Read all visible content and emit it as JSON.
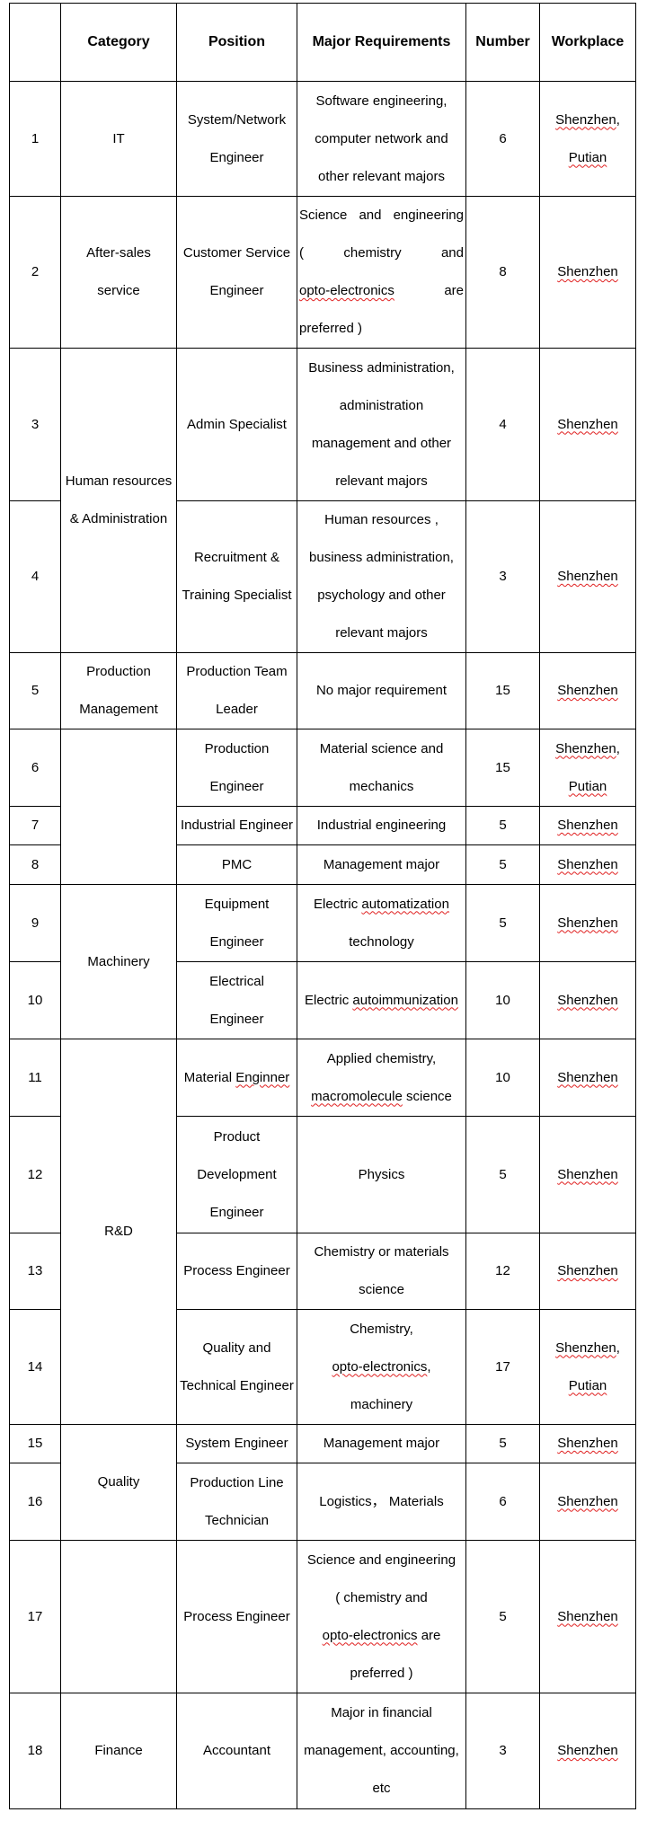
{
  "header": {
    "no": "",
    "category": "Category",
    "position": "Position",
    "requirements": "Major Requirements",
    "number": "Number",
    "workplace": "Workplace"
  },
  "spellcheck_flagged": [
    "Shenzhen",
    "Putian",
    "opto-electronics",
    "automatization",
    "autoimmunization",
    "Enginner",
    "macromolecule"
  ],
  "rows": [
    {
      "no": "1",
      "category": [
        "IT"
      ],
      "position": [
        "System/Network",
        "Engineer"
      ],
      "requirements": [
        "Software engineering,",
        "computer network and",
        "other relevant majors"
      ],
      "number": "6",
      "workplace": [
        "Shenzhen,",
        "Putian"
      ]
    },
    {
      "no": "2",
      "category": [
        "After-sales",
        "service"
      ],
      "position": [
        "Customer Service",
        "Engineer"
      ],
      "requirements": [
        "Science and engineering",
        "( chemistry and",
        "opto-electronics are",
        "preferred )"
      ],
      "number": "8",
      "workplace": [
        "Shenzhen"
      ]
    },
    {
      "no": "3",
      "category": [
        "Human resources",
        "& Administration"
      ],
      "position": [
        "Admin Specialist"
      ],
      "requirements": [
        "Business administration,",
        "administration",
        "management and other",
        "relevant majors"
      ],
      "number": "4",
      "workplace": [
        "Shenzhen"
      ]
    },
    {
      "no": "4",
      "category": [],
      "position": [
        "Recruitment &",
        "Training Specialist"
      ],
      "requirements": [
        "Human resources ,",
        "business administration,",
        "psychology and other",
        "relevant majors"
      ],
      "number": "3",
      "workplace": [
        "Shenzhen"
      ]
    },
    {
      "no": "5",
      "category": [
        "Production",
        "Management"
      ],
      "position": [
        "Production Team",
        "Leader"
      ],
      "requirements": [
        "No major requirement"
      ],
      "number": "15",
      "workplace": [
        "Shenzhen"
      ]
    },
    {
      "no": "6",
      "category": [],
      "position": [
        "Production",
        "Engineer"
      ],
      "requirements": [
        "Material science and",
        "mechanics"
      ],
      "number": "15",
      "workplace": [
        "Shenzhen,",
        "Putian"
      ]
    },
    {
      "no": "7",
      "category": [],
      "position": [
        "Industrial Engineer"
      ],
      "requirements": [
        "Industrial engineering"
      ],
      "number": "5",
      "workplace": [
        "Shenzhen"
      ]
    },
    {
      "no": "8",
      "category": [],
      "position": [
        "PMC"
      ],
      "requirements": [
        "Management major"
      ],
      "number": "5",
      "workplace": [
        "Shenzhen"
      ]
    },
    {
      "no": "9",
      "category": [
        "Machinery"
      ],
      "position": [
        "Equipment",
        "Engineer"
      ],
      "requirements": [
        "Electric automatization",
        "technology"
      ],
      "number": "5",
      "workplace": [
        "Shenzhen"
      ]
    },
    {
      "no": "10",
      "category": [],
      "position": [
        "Electrical",
        "Engineer"
      ],
      "requirements": [
        "Electric autoimmunization"
      ],
      "number": "10",
      "workplace": [
        "Shenzhen"
      ]
    },
    {
      "no": "11",
      "category": [
        "R&D"
      ],
      "position": [
        "Material Enginner"
      ],
      "requirements": [
        "Applied chemistry,",
        "macromolecule science"
      ],
      "number": "10",
      "workplace": [
        "Shenzhen"
      ]
    },
    {
      "no": "12",
      "category": [],
      "position": [
        "Product",
        "Development",
        "Engineer"
      ],
      "requirements": [
        "Physics"
      ],
      "number": "5",
      "workplace": [
        "Shenzhen"
      ]
    },
    {
      "no": "13",
      "category": [],
      "position": [
        "Process Engineer"
      ],
      "requirements": [
        "Chemistry or materials",
        "science"
      ],
      "number": "12",
      "workplace": [
        "Shenzhen"
      ]
    },
    {
      "no": "14",
      "category": [],
      "position": [
        "Quality and",
        "Technical Engineer"
      ],
      "requirements": [
        "Chemistry,",
        "opto-electronics,",
        "machinery"
      ],
      "number": "17",
      "workplace": [
        "Shenzhen,",
        "Putian"
      ]
    },
    {
      "no": "15",
      "category": [
        "Quality"
      ],
      "position": [
        "System Engineer"
      ],
      "requirements": [
        "Management major"
      ],
      "number": "5",
      "workplace": [
        "Shenzhen"
      ]
    },
    {
      "no": "16",
      "category": [],
      "position": [
        "Production Line",
        "Technician"
      ],
      "requirements": [
        "Logistics， Materials"
      ],
      "number": "6",
      "workplace": [
        "Shenzhen"
      ]
    },
    {
      "no": "17",
      "category": [],
      "position": [
        "Process Engineer"
      ],
      "requirements": [
        "Science and engineering",
        "( chemistry and",
        "opto-electronics are",
        "preferred )"
      ],
      "number": "5",
      "workplace": [
        "Shenzhen"
      ]
    },
    {
      "no": "18",
      "category": [
        "Finance"
      ],
      "position": [
        "Accountant"
      ],
      "requirements": [
        "Major in financial",
        "management, accounting,",
        "etc"
      ],
      "number": "3",
      "workplace": [
        "Shenzhen"
      ]
    }
  ]
}
